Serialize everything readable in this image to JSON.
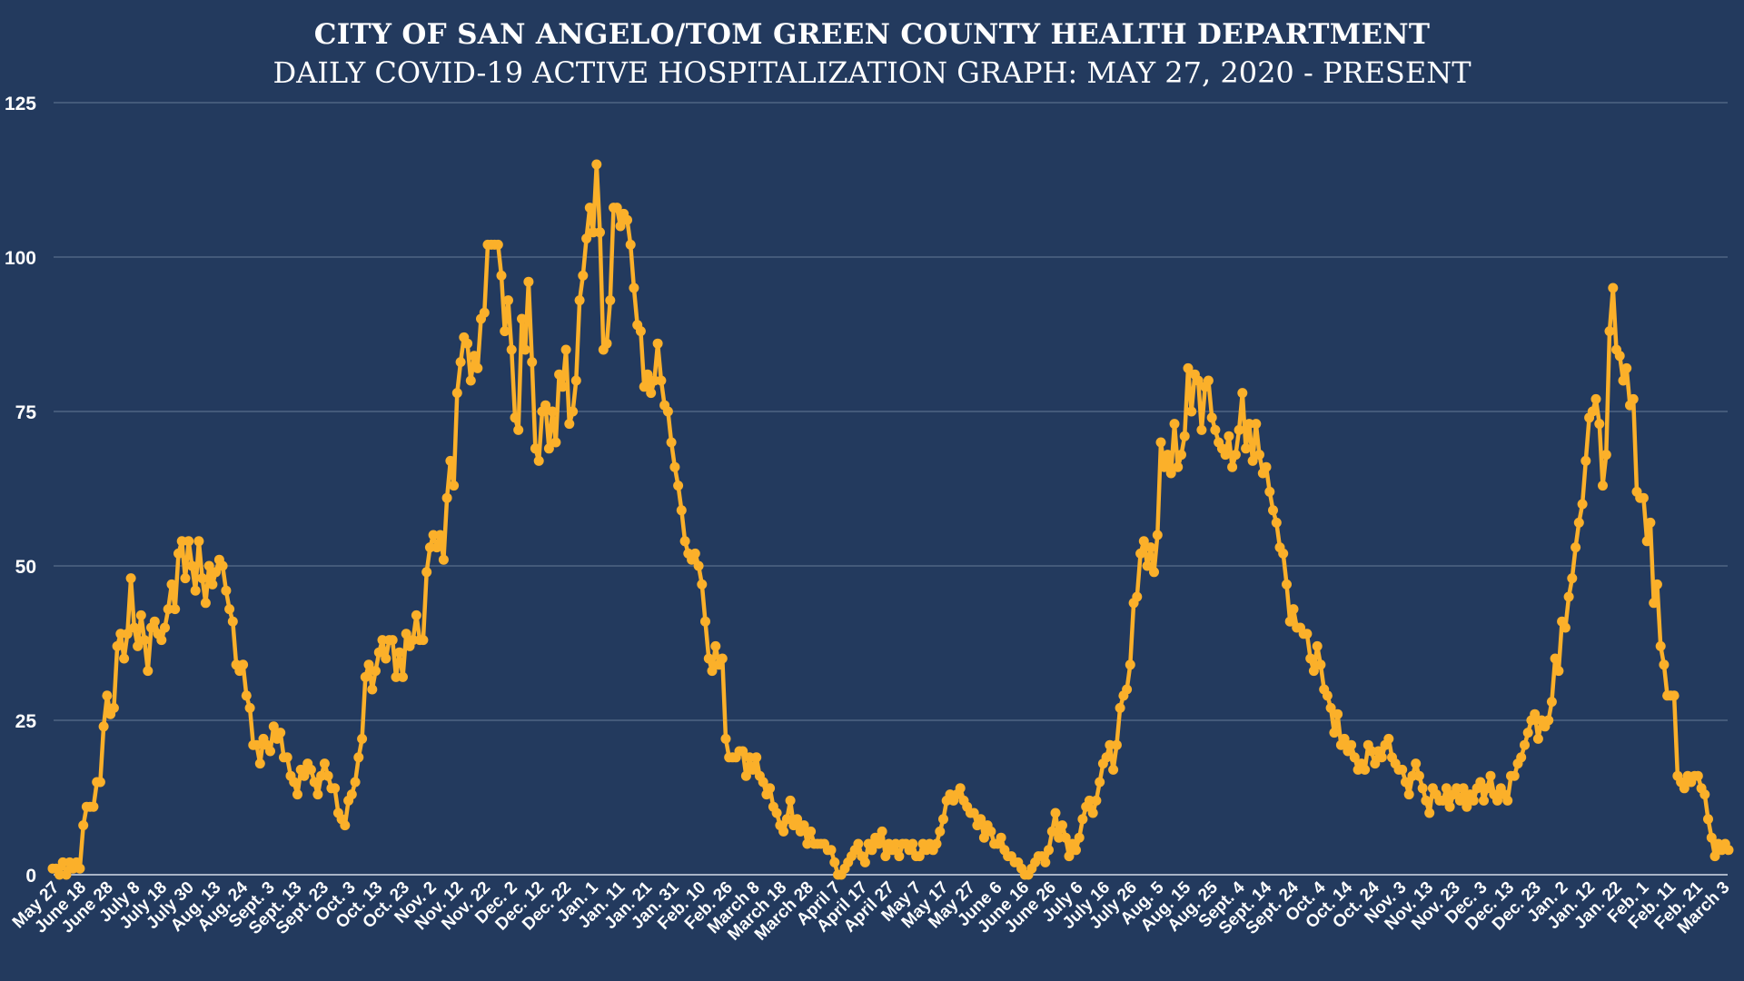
{
  "chart_data": {
    "type": "line",
    "title": "CITY OF SAN ANGELO/TOM GREEN COUNTY HEALTH DEPARTMENT",
    "subtitle": "DAILY COVID-19 ACTIVE HOSPITALIZATION GRAPH: MAY 27, 2020 - PRESENT",
    "xlabel": "",
    "ylabel": "",
    "ylim": [
      0,
      125
    ],
    "yticks": [
      "0",
      "25",
      "50",
      "75",
      "100",
      "125"
    ],
    "ytick_values": [
      0,
      25,
      50,
      75,
      100,
      125
    ],
    "grid": true,
    "legend": "none",
    "colors": {
      "background": "#233a5e",
      "line": "#fbb02a",
      "grid": "#4f6484",
      "text": "#ffffff"
    },
    "xtick_labels": [
      "May 27",
      "June 18",
      "June 28",
      "July 8",
      "July 18",
      "July 30",
      "Aug. 13",
      "Aug. 24",
      "Sept. 3",
      "Sept. 13",
      "Sept. 23",
      "Oct. 3",
      "Oct. 13",
      "Oct. 23",
      "Nov. 2",
      "Nov. 12",
      "Nov. 22",
      "Dec. 2",
      "Dec. 12",
      "Dec. 22",
      "Jan. 1",
      "Jan. 11",
      "Jan. 21",
      "Jan. 31",
      "Feb. 10",
      "Feb. 26",
      "March 8",
      "March 18",
      "March 28",
      "April 7",
      "April 17",
      "April 27",
      "May 7",
      "May 17",
      "May 27",
      "June 6",
      "June 16",
      "June 26",
      "July 6",
      "July 16",
      "July 26",
      "Aug. 5",
      "Aug. 15",
      "Aug. 25",
      "Sept. 4",
      "Sept. 14",
      "Sept. 24",
      "Oct. 4",
      "Oct. 14",
      "Oct. 24",
      "Nov. 3",
      "Nov. 13",
      "Nov. 23",
      "Dec. 3",
      "Dec. 13",
      "Dec. 23",
      "Jan. 2",
      "Jan. 12",
      "Jan. 22",
      "Feb. 1",
      "Feb. 11",
      "Feb. 21",
      "March 3"
    ],
    "series": [
      {
        "name": "Active Hospitalizations",
        "values": [
          1,
          1,
          0,
          2,
          0,
          2,
          1,
          2,
          1,
          8,
          11,
          11,
          11,
          15,
          15,
          24,
          29,
          26,
          27,
          37,
          39,
          35,
          39,
          48,
          40,
          37,
          42,
          38,
          33,
          40,
          41,
          39,
          38,
          40,
          43,
          47,
          43,
          52,
          54,
          48,
          54,
          50,
          46,
          54,
          48,
          44,
          50,
          47,
          49,
          51,
          50,
          46,
          43,
          41,
          34,
          33,
          34,
          29,
          27,
          21,
          21,
          18,
          22,
          21,
          20,
          24,
          22,
          23,
          19,
          19,
          16,
          15,
          13,
          17,
          16,
          18,
          17,
          15,
          13,
          16,
          18,
          16,
          14,
          14,
          10,
          9,
          8,
          12,
          13,
          15,
          19,
          22,
          32,
          34,
          30,
          33,
          36,
          38,
          35,
          38,
          38,
          32,
          36,
          32,
          39,
          37,
          38,
          42,
          38,
          38,
          49,
          53,
          55,
          53,
          55,
          51,
          61,
          67,
          63,
          78,
          83,
          87,
          86,
          80,
          84,
          82,
          90,
          91,
          102,
          102,
          102,
          102,
          97,
          88,
          93,
          85,
          74,
          72,
          90,
          85,
          96,
          83,
          69,
          67,
          75,
          76,
          69,
          75,
          70,
          81,
          79,
          85,
          73,
          75,
          80,
          93,
          97,
          103,
          108,
          104,
          115,
          104,
          85,
          86,
          93,
          108,
          108,
          105,
          107,
          106,
          102,
          95,
          89,
          88,
          79,
          81,
          78,
          80,
          86,
          80,
          76,
          75,
          70,
          66,
          63,
          59,
          54,
          52,
          51,
          52,
          50,
          47,
          41,
          35,
          33,
          37,
          34,
          35,
          22,
          19,
          19,
          19,
          20,
          20,
          16,
          19,
          17,
          19,
          16,
          15,
          13,
          14,
          11,
          10,
          8,
          7,
          9,
          12,
          8,
          9,
          7,
          8,
          5,
          7,
          5,
          5,
          5,
          5,
          4,
          4,
          2,
          0,
          0,
          1,
          2,
          3,
          4,
          5,
          3,
          2,
          5,
          4,
          6,
          5,
          7,
          3,
          5,
          4,
          5,
          3,
          5,
          5,
          4,
          5,
          3,
          3,
          5,
          4,
          5,
          4,
          5,
          7,
          9,
          12,
          13,
          12,
          13,
          14,
          12,
          11,
          10,
          10,
          8,
          9,
          6,
          8,
          7,
          5,
          5,
          6,
          4,
          3,
          3,
          2,
          2,
          1,
          0,
          0,
          1,
          2,
          3,
          3,
          2,
          4,
          7,
          10,
          6,
          8,
          6,
          3,
          5,
          4,
          6,
          9,
          11,
          12,
          10,
          12,
          15,
          18,
          19,
          21,
          17,
          21,
          27,
          29,
          30,
          34,
          44,
          45,
          52,
          54,
          50,
          53,
          49,
          55,
          70,
          66,
          68,
          65,
          73,
          66,
          68,
          71,
          82,
          75,
          81,
          80,
          72,
          79,
          80,
          74,
          72,
          70,
          69,
          68,
          71,
          66,
          68,
          72,
          78,
          69,
          73,
          67,
          73,
          68,
          65,
          66,
          62,
          59,
          57,
          53,
          52,
          47,
          41,
          43,
          40,
          40,
          39,
          39,
          35,
          33,
          37,
          34,
          30,
          29,
          27,
          23,
          26,
          21,
          22,
          20,
          21,
          19,
          17,
          18,
          17,
          21,
          20,
          18,
          20,
          19,
          21,
          22,
          19,
          18,
          17,
          17,
          15,
          13,
          16,
          18,
          16,
          14,
          12,
          10,
          14,
          13,
          12,
          12,
          14,
          11,
          13,
          14,
          12,
          14,
          11,
          13,
          12,
          14,
          15,
          12,
          14,
          16,
          13,
          12,
          14,
          13,
          12,
          16,
          16,
          18,
          19,
          21,
          23,
          25,
          26,
          22,
          25,
          24,
          25,
          28,
          35,
          33,
          41,
          40,
          45,
          48,
          53,
          57,
          60,
          67,
          74,
          75,
          77,
          73,
          63,
          68,
          88,
          95,
          85,
          84,
          80,
          82,
          76,
          77,
          62,
          61,
          61,
          54,
          57,
          44,
          47,
          37,
          34,
          29,
          29,
          29,
          16,
          15,
          14,
          16,
          15,
          16,
          16,
          14,
          13,
          9,
          6,
          3,
          5,
          4,
          5,
          4
        ]
      }
    ]
  }
}
